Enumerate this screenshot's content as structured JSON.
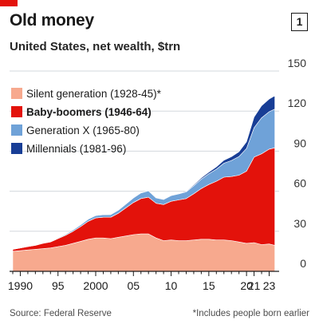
{
  "header": {
    "title": "Old money",
    "badge": "1",
    "subtitle": "United States, net wealth, $trn"
  },
  "footer": {
    "source": "Source: Federal Reserve",
    "footnote": "*Includes people born earlier"
  },
  "chart_data": {
    "type": "area",
    "stacked": true,
    "ylim": [
      0,
      150
    ],
    "y_ticks": [
      0,
      30,
      60,
      90,
      120,
      150
    ],
    "y_axis_side": "right",
    "xlim": [
      1989,
      2023.9
    ],
    "x_ticks": [
      {
        "value": 1990,
        "label": "1990"
      },
      {
        "value": 1995,
        "label": "95"
      },
      {
        "value": 2000,
        "label": "2000"
      },
      {
        "value": 2005,
        "label": "05"
      },
      {
        "value": 2010,
        "label": "10"
      },
      {
        "value": 2015,
        "label": "15"
      },
      {
        "value": 2020,
        "label": "20"
      },
      {
        "value": 2021,
        "label": "21"
      },
      {
        "value": 2023,
        "label": "23"
      }
    ],
    "grid": true,
    "legend_position": "top-left",
    "x": [
      1989,
      1990,
      1991,
      1992,
      1993,
      1994,
      1995,
      1996,
      1997,
      1998,
      1999,
      2000,
      2001,
      2002,
      2003,
      2004,
      2005,
      2006,
      2007,
      2008,
      2009,
      2010,
      2011,
      2012,
      2013,
      2014,
      2015,
      2016,
      2017,
      2018,
      2019,
      2020,
      2021,
      2022,
      2023,
      2023.75
    ],
    "series": [
      {
        "name": "Silent generation (1928-45)*",
        "color": "#f7a98e",
        "bold": false,
        "values": [
          15,
          15.5,
          16,
          16.5,
          17,
          17.5,
          18.5,
          19.5,
          21,
          22.5,
          24,
          25,
          25,
          24.5,
          25.5,
          26.5,
          27.5,
          28,
          28,
          25,
          23,
          23.5,
          23,
          23,
          23.5,
          24,
          24,
          23.5,
          23.5,
          23,
          22,
          21,
          21.5,
          20,
          20.5,
          19.5
        ]
      },
      {
        "name": "Baby-boomers (1946-64)",
        "color": "#e3120b",
        "bold": true,
        "values": [
          1.5,
          2,
          2.5,
          3,
          4,
          4.5,
          6,
          7.5,
          9,
          11,
          13.5,
          15,
          15.5,
          16,
          18,
          21,
          24,
          26.5,
          27.5,
          26,
          27,
          29,
          30.5,
          31.5,
          34.5,
          38,
          41,
          44,
          47,
          48,
          50,
          54,
          64,
          68,
          71,
          73
        ]
      },
      {
        "name": "Generation X (1965-80)",
        "color": "#6fa2d8",
        "bold": false,
        "values": [
          0,
          0,
          0,
          0.1,
          0.2,
          0.3,
          0.5,
          0.7,
          1,
          1.3,
          1.6,
          1.8,
          1.9,
          2,
          2.3,
          2.8,
          3.5,
          4.2,
          4.8,
          4,
          3.8,
          4.2,
          4.5,
          5,
          6,
          7,
          8,
          9,
          10.5,
          12,
          14,
          17,
          22,
          27,
          28,
          29
        ]
      },
      {
        "name": "Millennials (1981-96)",
        "color": "#183e96",
        "bold": false,
        "values": [
          0,
          0,
          0,
          0,
          0,
          0,
          0,
          0,
          0,
          0,
          0,
          0,
          0,
          0,
          0,
          0,
          0,
          0.1,
          0.2,
          0.2,
          0.2,
          0.3,
          0.4,
          0.5,
          0.7,
          1,
          1.3,
          1.7,
          2.2,
          2.8,
          3.6,
          5,
          8,
          9,
          9.5,
          10
        ]
      }
    ]
  }
}
